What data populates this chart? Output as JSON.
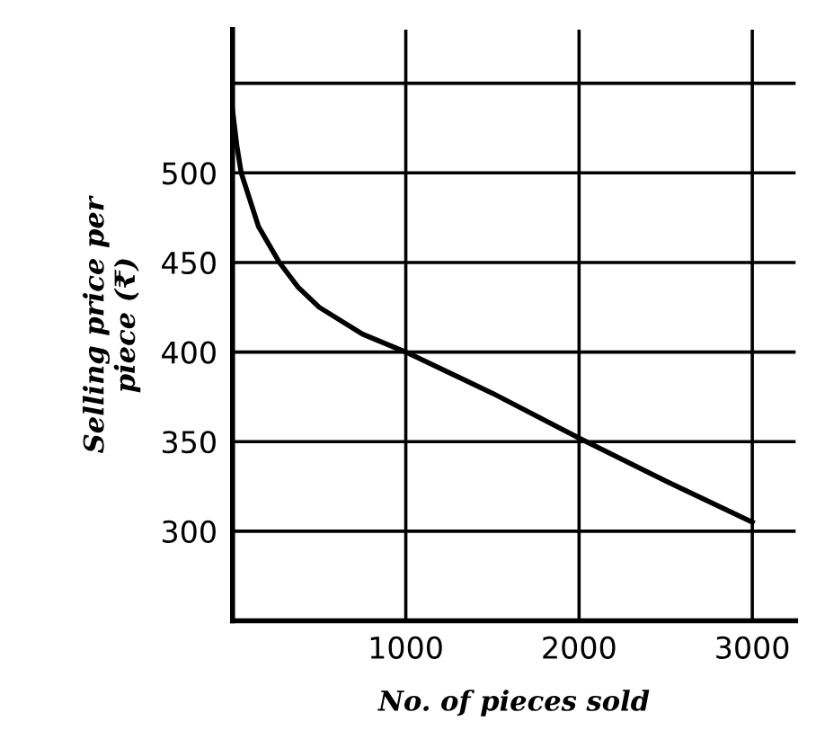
{
  "chart_data": {
    "type": "line",
    "xlabel": "No. of pieces sold",
    "ylabel": "Selling price per\npiece (₹)",
    "x": [
      0,
      25,
      50,
      150,
      270,
      380,
      500,
      750,
      1000,
      1500,
      2000,
      2500,
      3000
    ],
    "series": [
      {
        "color": "#000000",
        "values": [
          535,
          515,
          500,
          470,
          450,
          436,
          425,
          410,
          400,
          377,
          352,
          328,
          305
        ]
      }
    ],
    "xlim": [
      0,
      3250
    ],
    "ylim": [
      250,
      580
    ],
    "xticks": [
      {
        "value": 0,
        "label": null
      },
      1000,
      2000,
      3000
    ],
    "yticks": [
      {
        "value": 250,
        "label": null
      },
      300,
      350,
      400,
      450,
      500,
      {
        "value": 550,
        "label": null
      }
    ],
    "grid": true,
    "marker": "none",
    "line_style": "solid"
  }
}
